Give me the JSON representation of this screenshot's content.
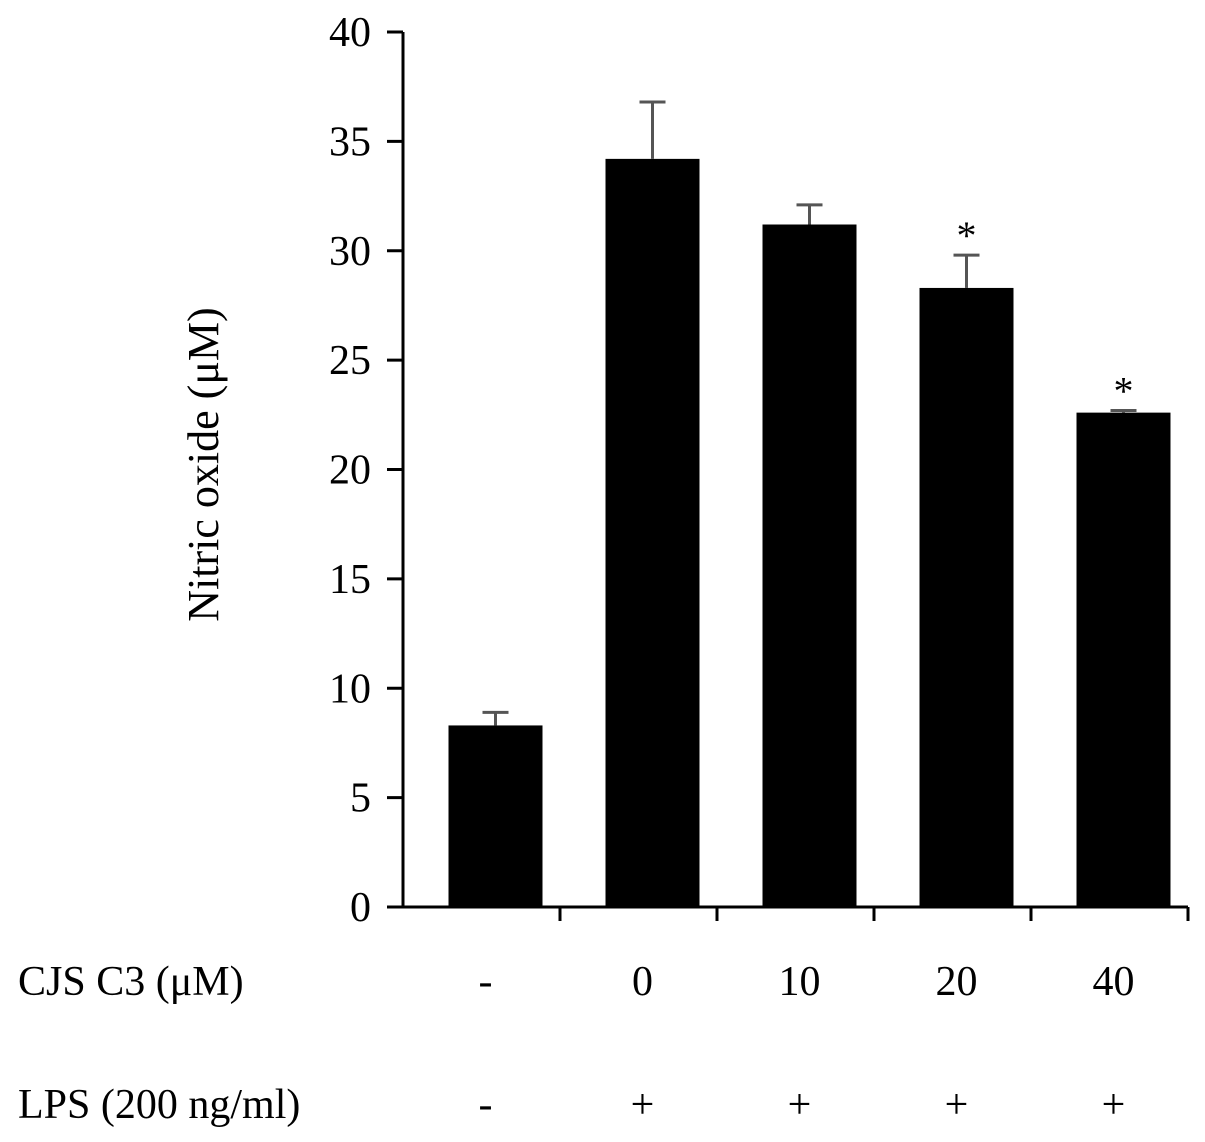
{
  "chart_data": {
    "type": "bar",
    "ylabel": "Nitric oxide (μM)",
    "ylim": [
      0,
      40
    ],
    "yticks": [
      0,
      5,
      10,
      15,
      20,
      25,
      30,
      35,
      40
    ],
    "grid": false,
    "values": [
      8.3,
      34.2,
      31.2,
      28.3,
      22.6
    ],
    "errors": [
      0.6,
      2.6,
      0.9,
      1.5,
      0.1
    ],
    "significance": [
      "",
      "",
      "",
      "*",
      "*"
    ],
    "colors": {
      "bar": "#000000",
      "error": "#555555",
      "axis": "#000000"
    },
    "rows": [
      {
        "label": "CJS C3 (μM)",
        "values": [
          "-",
          "0",
          "10",
          "20",
          "40"
        ]
      },
      {
        "label": "LPS (200 ng/ml)",
        "values": [
          "-",
          "+",
          "+",
          "+",
          "+"
        ]
      }
    ]
  }
}
